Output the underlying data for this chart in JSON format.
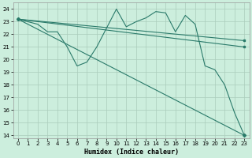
{
  "xlabel": "Humidex (Indice chaleur)",
  "bg_color": "#cceedd",
  "grid_color": "#aaccbb",
  "line_color": "#2a7a6a",
  "xlim": [
    -0.5,
    23.5
  ],
  "ylim": [
    13.8,
    24.5
  ],
  "yticks": [
    14,
    15,
    16,
    17,
    18,
    19,
    20,
    21,
    22,
    23,
    24
  ],
  "xticks": [
    0,
    1,
    2,
    3,
    4,
    5,
    6,
    7,
    8,
    9,
    10,
    11,
    12,
    13,
    14,
    15,
    16,
    17,
    18,
    19,
    20,
    21,
    22,
    23
  ],
  "series": [
    {
      "x": [
        0,
        1,
        2,
        3,
        4,
        5,
        6,
        7,
        8,
        9,
        10,
        11,
        12,
        13,
        14,
        15,
        16,
        17,
        18,
        19,
        20,
        21,
        22,
        23
      ],
      "y": [
        23.2,
        23.0,
        22.8,
        22.2,
        22.2,
        21.0,
        19.5,
        19.8,
        21.0,
        22.5,
        24.0,
        22.6,
        23.0,
        23.3,
        23.8,
        23.7,
        22.2,
        23.5,
        22.8,
        19.5,
        19.2,
        18.0,
        15.8,
        14.0
      ],
      "marker": "D",
      "markersize": 2.0,
      "lw": 0.8
    },
    {
      "x": [
        0,
        23
      ],
      "y": [
        23.2,
        21.5
      ],
      "marker": "s",
      "markersize": 1.5,
      "lw": 0.8
    },
    {
      "x": [
        0,
        23
      ],
      "y": [
        23.2,
        21.0
      ],
      "marker": "s",
      "markersize": 1.5,
      "lw": 0.8
    },
    {
      "x": [
        0,
        23
      ],
      "y": [
        23.2,
        14.0
      ],
      "marker": "s",
      "markersize": 1.5,
      "lw": 0.8
    }
  ]
}
